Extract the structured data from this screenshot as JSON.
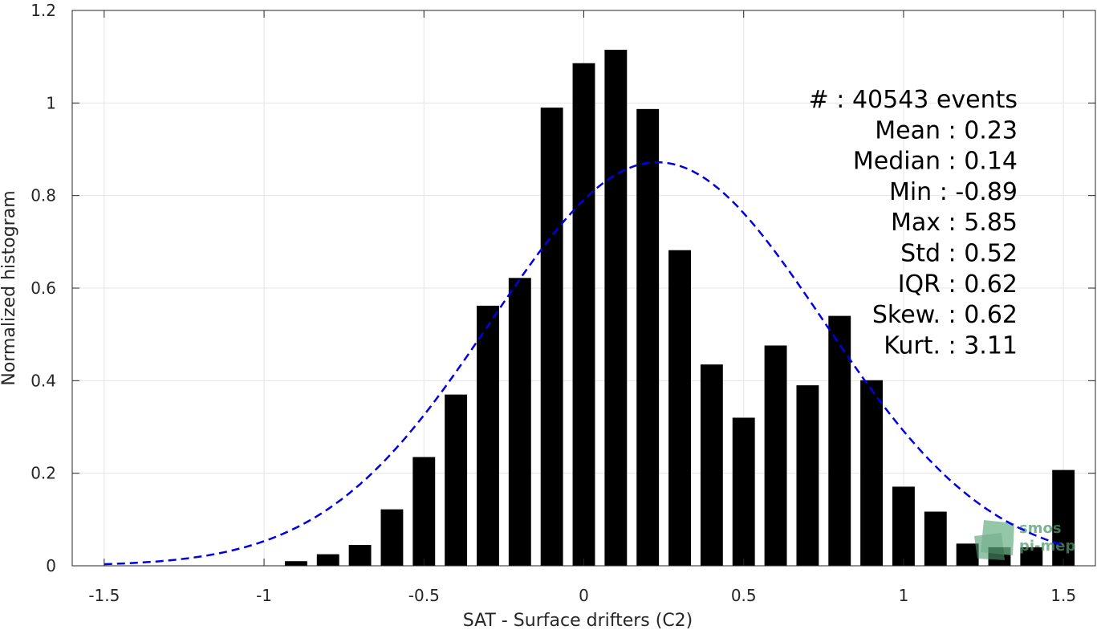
{
  "chart_data": {
    "type": "bar",
    "xlabel": "SAT - Surface drifters (C2)",
    "ylabel": "Normalized histogram",
    "xlim": [
      -1.6,
      1.6
    ],
    "ylim": [
      0,
      1.2
    ],
    "xticks": [
      -1.5,
      -1,
      -0.5,
      0,
      0.5,
      1,
      1.5
    ],
    "xtick_labels": [
      "-1.5",
      "-1",
      "-0.5",
      "0",
      "0.5",
      "1",
      "1.5"
    ],
    "yticks": [
      0,
      0.2,
      0.4,
      0.6,
      0.8,
      1,
      1.2
    ],
    "ytick_labels": [
      "0",
      "0.2",
      "0.4",
      "0.6",
      "0.8",
      "1",
      "1.2"
    ],
    "grid": true,
    "bar_color": "#000000",
    "bar_width": 0.07,
    "bars": [
      {
        "x": -0.9,
        "y": 0.01
      },
      {
        "x": -0.8,
        "y": 0.025
      },
      {
        "x": -0.7,
        "y": 0.045
      },
      {
        "x": -0.6,
        "y": 0.122
      },
      {
        "x": -0.5,
        "y": 0.235
      },
      {
        "x": -0.4,
        "y": 0.37
      },
      {
        "x": -0.3,
        "y": 0.562
      },
      {
        "x": -0.2,
        "y": 0.622
      },
      {
        "x": -0.1,
        "y": 0.99
      },
      {
        "x": 0.0,
        "y": 1.086
      },
      {
        "x": 0.1,
        "y": 1.115
      },
      {
        "x": 0.2,
        "y": 0.987
      },
      {
        "x": 0.3,
        "y": 0.682
      },
      {
        "x": 0.4,
        "y": 0.435
      },
      {
        "x": 0.5,
        "y": 0.32
      },
      {
        "x": 0.6,
        "y": 0.476
      },
      {
        "x": 0.7,
        "y": 0.39
      },
      {
        "x": 0.8,
        "y": 0.54
      },
      {
        "x": 0.9,
        "y": 0.401
      },
      {
        "x": 1.0,
        "y": 0.171
      },
      {
        "x": 1.1,
        "y": 0.117
      },
      {
        "x": 1.2,
        "y": 0.048
      },
      {
        "x": 1.3,
        "y": 0.04
      },
      {
        "x": 1.4,
        "y": 0.04
      },
      {
        "x": 1.5,
        "y": 0.207
      }
    ],
    "fit_curve": {
      "color": "#0000e6",
      "style": "dashed",
      "mean": 0.23,
      "std": 0.52,
      "peak": 0.872,
      "x_range": [
        -1.5,
        1.5
      ]
    },
    "annotations": [
      "#  : 40543 events",
      "Mean : 0.23",
      "Median : 0.14",
      "Min : -0.89",
      "Max : 5.85",
      "Std : 0.52",
      "IQR : 0.62",
      "Skew. : 0.62",
      "Kurt. : 3.11"
    ]
  },
  "watermark": {
    "line1": "smos",
    "line2": "pi-mep",
    "color": "#4f9a6e"
  }
}
